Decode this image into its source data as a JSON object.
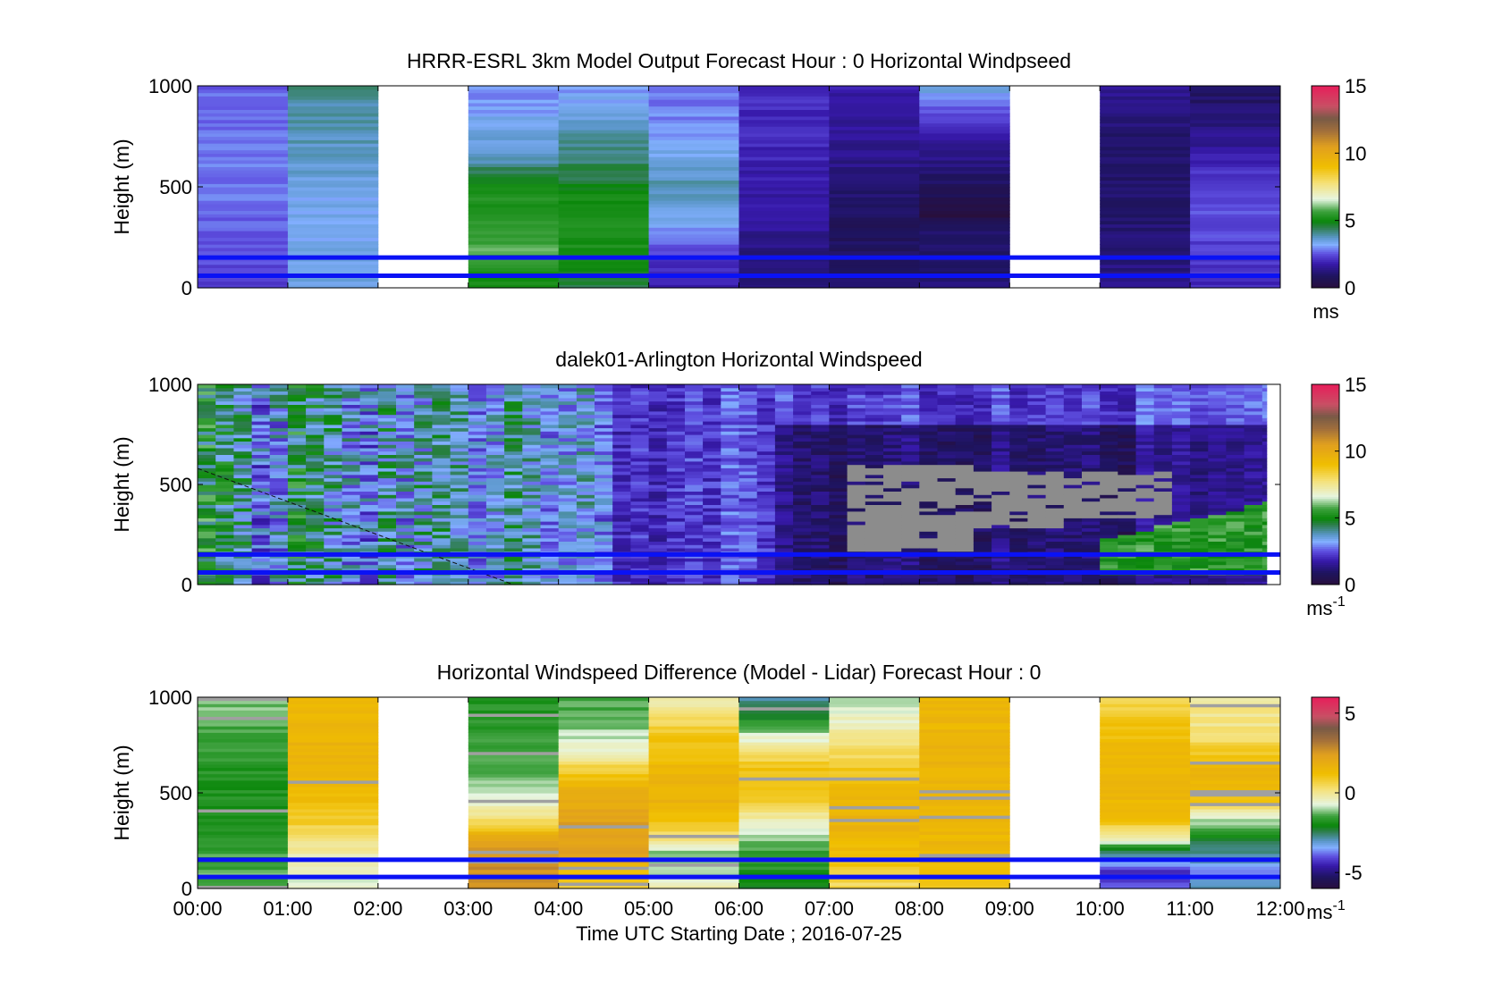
{
  "chart_data": [
    {
      "type": "heatmap",
      "title": "HRRR-ESRL 3km Model Output   Forecast Hour : 0 Horizontal Windpseed",
      "ylabel": "Height (m)",
      "ylim": [
        0,
        1000
      ],
      "yticks": [
        0,
        500,
        1000
      ],
      "xlim_hours": [
        0,
        12
      ],
      "colorbar": {
        "ticks": [
          0,
          5,
          10,
          15
        ],
        "range": [
          0,
          15
        ],
        "unit": "ms",
        "unit_sup": ""
      },
      "blank_hours": [
        2,
        9
      ],
      "columns": [
        {
          "t": 0,
          "levels": [
            2.2,
            2.4,
            2.5,
            2.6,
            2.7,
            2.8,
            2.8,
            2.8,
            2.8,
            2.8,
            2.7,
            2.7
          ]
        },
        {
          "t": 1,
          "levels": [
            3.6,
            3.5,
            3.4,
            3.4,
            3.3,
            3.4,
            3.5,
            3.7,
            3.8,
            3.9,
            4.0,
            4.1
          ]
        },
        {
          "t": 3,
          "levels": [
            5.0,
            5.3,
            5.8,
            5.6,
            5.4,
            5.2,
            4.8,
            3.9,
            3.6,
            3.4,
            3.0,
            2.9
          ]
        },
        {
          "t": 4,
          "levels": [
            4.5,
            4.9,
            5.2,
            5.3,
            5.2,
            5.0,
            4.6,
            4.3,
            4.0,
            3.6,
            3.3,
            3.1
          ]
        },
        {
          "t": 5,
          "levels": [
            1.8,
            2.0,
            2.4,
            2.9,
            3.5,
            3.9,
            3.8,
            3.5,
            3.2,
            3.0,
            2.8,
            2.8
          ]
        },
        {
          "t": 6,
          "levels": [
            1.0,
            1.2,
            1.3,
            1.5,
            1.6,
            1.7,
            1.8,
            1.9,
            2.0,
            2.0,
            2.1,
            2.1
          ]
        },
        {
          "t": 7,
          "levels": [
            1.1,
            1.0,
            0.9,
            0.8,
            0.9,
            1.1,
            1.3,
            1.4,
            1.5,
            1.6,
            1.7,
            1.8
          ]
        },
        {
          "t": 8,
          "levels": [
            1.2,
            1.0,
            0.9,
            1.0,
            0.05,
            0.6,
            1.0,
            1.3,
            1.6,
            2.1,
            2.8,
            3.6
          ]
        },
        {
          "t": 10,
          "levels": [
            1.4,
            1.3,
            1.2,
            1.2,
            1.1,
            1.0,
            1.0,
            1.0,
            1.1,
            1.2,
            1.3,
            1.6
          ]
        },
        {
          "t": 11,
          "levels": [
            2.0,
            2.1,
            2.3,
            2.4,
            2.5,
            2.4,
            2.2,
            1.9,
            1.5,
            1.2,
            1.0,
            0.9
          ]
        }
      ]
    },
    {
      "type": "heatmap",
      "title": "dalek01-Arlington  Horizontal Windspeed",
      "ylabel": "Height (m)",
      "ylim": [
        0,
        1000
      ],
      "yticks": [
        0,
        500,
        1000
      ],
      "xlim_hours": [
        0,
        12
      ],
      "data_end_hour": 11.85,
      "colorbar": {
        "ticks": [
          0,
          5,
          10,
          15
        ],
        "range": [
          0,
          15
        ],
        "unit": "ms",
        "unit_sup": "-1"
      },
      "phases": [
        {
          "start": 0,
          "end": 2.5,
          "value": 4.0,
          "variability": 1.6
        },
        {
          "start": 2.5,
          "end": 4.5,
          "value": 3.7,
          "variability": 1.2
        },
        {
          "start": 4.5,
          "end": 6.4,
          "value": 2.4,
          "variability": 0.7
        },
        {
          "start": 6.4,
          "end": 10.2,
          "value": 1.1,
          "variability": 0.6
        },
        {
          "start": 10.2,
          "end": 12,
          "value": 1.6,
          "variability": 0.5
        }
      ],
      "missing_regions": [
        {
          "start": 7.1,
          "end": 8.6,
          "hmin": 170,
          "hmax": 600
        },
        {
          "start": 8.6,
          "end": 9.4,
          "hmin": 280,
          "hmax": 560
        },
        {
          "start": 9.4,
          "end": 10.7,
          "hmin": 340,
          "hmax": 560
        }
      ],
      "low_jet": {
        "start": 9.8,
        "end": 11.85,
        "hmin": 50,
        "hmax": 420,
        "value": 5.4
      }
    },
    {
      "type": "heatmap",
      "title": "Horizontal Windspeed Difference (Model - Lidar) Forecast Hour : 0",
      "xlabel": "Time UTC  Starting Date ; 2016-07-25",
      "ylabel": "Height (m)",
      "ylim": [
        0,
        1000
      ],
      "yticks": [
        0,
        500,
        1000
      ],
      "xlim_hours": [
        0,
        12
      ],
      "xtick_labels": [
        "00:00",
        "01:00",
        "02:00",
        "03:00",
        "04:00",
        "05:00",
        "06:00",
        "07:00",
        "08:00",
        "09:00",
        "10:00",
        "11:00",
        "12:00"
      ],
      "colorbar": {
        "ticks": [
          -5,
          0,
          5
        ],
        "range": [
          -6,
          6
        ],
        "unit": "ms",
        "unit_sup": "-1"
      },
      "blank_hours": [
        2,
        9
      ],
      "columns": [
        {
          "t": 0,
          "levels": [
            -1.3,
            -1.4,
            -1.5,
            -1.6,
            -1.7,
            -1.8,
            -1.8,
            -1.7,
            -1.6,
            -1.5,
            -1.3,
            -1.0
          ]
        },
        {
          "t": 1,
          "levels": [
            -0.8,
            -0.5,
            -0.2,
            0.3,
            0.9,
            1.3,
            1.5,
            1.6,
            1.6,
            1.5,
            1.5,
            1.4
          ]
        },
        {
          "t": 3,
          "levels": [
            2.6,
            2.7,
            2.6,
            1.8,
            0.3,
            -0.6,
            -1.0,
            -1.3,
            -1.5,
            -1.6,
            -1.7,
            -1.8
          ]
        },
        {
          "t": 4,
          "levels": [
            0.5,
            1.3,
            2.2,
            2.4,
            2.3,
            2.0,
            1.5,
            0.6,
            -0.5,
            -1.0,
            -1.3,
            -1.5
          ]
        },
        {
          "t": 5,
          "levels": [
            -0.2,
            -1.0,
            -1.3,
            0.3,
            1.3,
            1.6,
            1.6,
            1.4,
            1.2,
            0.8,
            0.3,
            -0.3
          ]
        },
        {
          "t": 6,
          "levels": [
            -2.0,
            -1.8,
            -1.5,
            -1.0,
            -0.3,
            0.8,
            1.2,
            1.0,
            0.1,
            -1.0,
            -2.2,
            -3.0
          ]
        },
        {
          "t": 7,
          "levels": [
            0.4,
            0.8,
            1.2,
            1.5,
            1.6,
            1.6,
            1.3,
            0.9,
            0.3,
            -0.2,
            -0.6,
            -1.0
          ]
        },
        {
          "t": 8,
          "levels": [
            1.0,
            1.2,
            1.4,
            1.5,
            1.5,
            1.6,
            1.6,
            1.6,
            1.6,
            1.5,
            1.5,
            1.4
          ]
        },
        {
          "t": 10,
          "levels": [
            -4.0,
            -4.4,
            -2.6,
            -0.2,
            1.3,
            1.5,
            1.5,
            1.5,
            1.4,
            1.2,
            0.8,
            0.6
          ]
        },
        {
          "t": 11,
          "levels": [
            -3.0,
            -3.6,
            -2.8,
            -2.0,
            -0.8,
            0.9,
            1.6,
            1.5,
            0.8,
            0.2,
            0.0,
            0.0
          ]
        }
      ]
    }
  ],
  "reference_lines_height_m": [
    60,
    150
  ]
}
